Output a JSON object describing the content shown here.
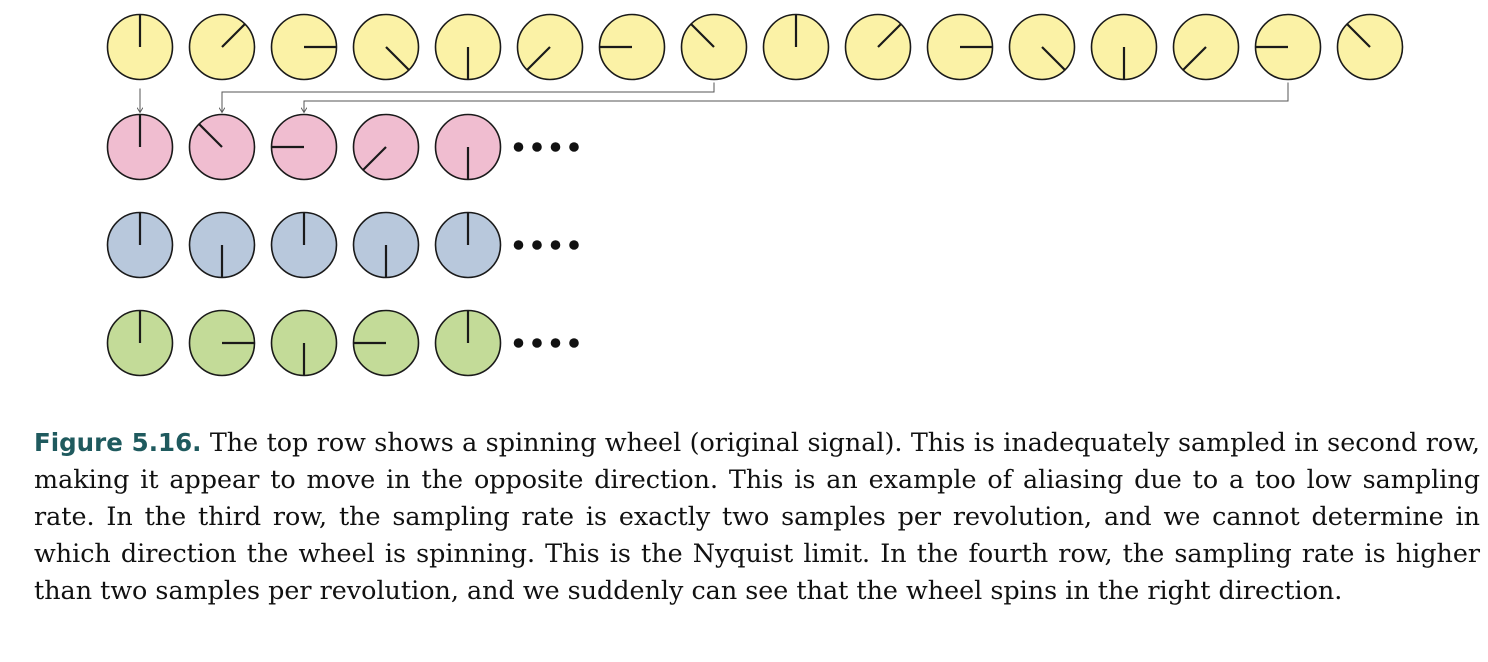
{
  "figure": {
    "label": "Figure 5.16.",
    "caption": " The top row shows a spinning wheel (original signal). This is inadequately sampled in second row, making it appear to move in the opposite direction. This is an example of aliasing due to a too low sampling rate. In the third row, the sampling rate is exactly two samples per revolution, and we cannot determine in which direction the wheel is spinning. This is the Nyquist limit. In the fourth row, the sampling rate is higher than two samples per revolution, and we suddenly can see that the wheel spins in the right direction.",
    "ellipsis": "••••"
  },
  "colors": {
    "label": "#1f5a5e",
    "stroke": "#1a1a1a",
    "connector": "#555555"
  },
  "rows": [
    {
      "name": "original-signal",
      "fill": "#fbf2a6",
      "spoke_angles_deg": [
        0,
        45,
        90,
        135,
        180,
        225,
        270,
        315,
        0,
        45,
        90,
        135,
        180,
        225,
        270,
        315
      ],
      "ellipsis": false
    },
    {
      "name": "undersampled",
      "fill": "#f0bdd0",
      "spoke_angles_deg": [
        0,
        315,
        270,
        225,
        180
      ],
      "ellipsis": true
    },
    {
      "name": "nyquist-limit",
      "fill": "#b8c8dc",
      "spoke_angles_deg": [
        0,
        180,
        0,
        180,
        0
      ],
      "ellipsis": true
    },
    {
      "name": "oversampled",
      "fill": "#c3db98",
      "spoke_angles_deg": [
        0,
        90,
        180,
        270,
        0
      ],
      "ellipsis": true
    }
  ],
  "sample_links": [
    {
      "from_col": 0,
      "to_col": 0
    },
    {
      "from_col": 7,
      "to_col": 1
    },
    {
      "from_col": 14,
      "to_col": 2
    }
  ]
}
